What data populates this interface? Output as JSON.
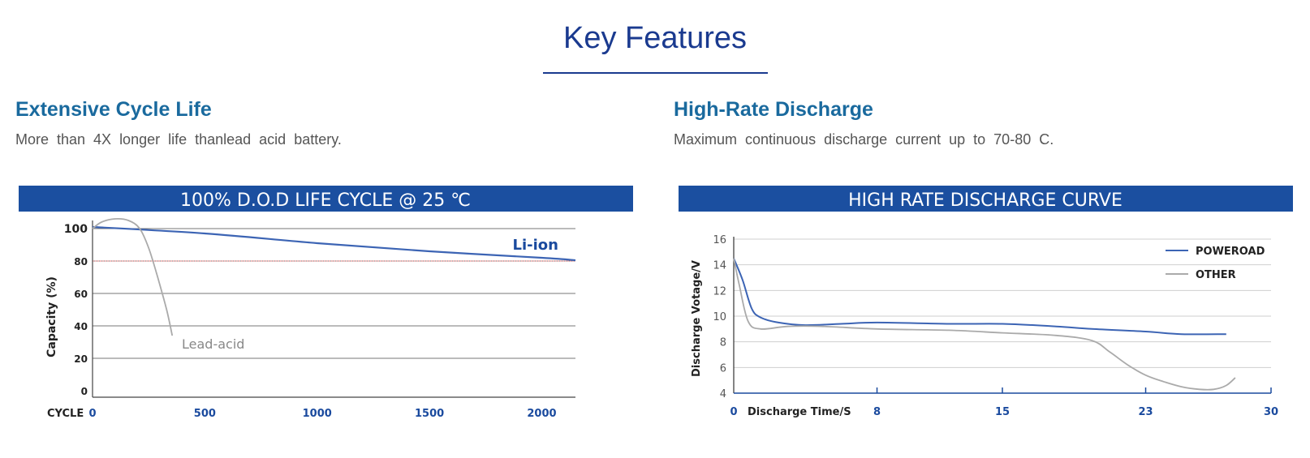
{
  "page": {
    "title": "Key Features"
  },
  "features": [
    {
      "heading": "Extensive Cycle Life",
      "description": "More than 4X longer life thanlead acid battery."
    },
    {
      "heading": "High-Rate Discharge",
      "description": "Maximum continuous discharge current up to 70-80 C."
    }
  ],
  "colors": {
    "title": "#1a3a8f",
    "heading": "#1a6a9e",
    "banner": "#1b4fa0",
    "primary_line": "#3c64b4",
    "secondary_line": "#aaaaaa",
    "reference_line": "#e88080"
  },
  "chart_data": [
    {
      "type": "line",
      "title": "100% D.O.D LIFE CYCLE @ 25 ℃",
      "xlabel": "CYCLE",
      "ylabel": "Capacity (%)",
      "xlim": [
        0,
        2150
      ],
      "ylim": [
        0,
        105
      ],
      "x_ticks": [
        0,
        500,
        1000,
        1500,
        2000
      ],
      "y_ticks": [
        0,
        20,
        40,
        60,
        80,
        100
      ],
      "reference_line": 80,
      "grid": "horizontal",
      "series": [
        {
          "name": "Li-ion",
          "points": [
            [
              0,
              101
            ],
            [
              500,
              97
            ],
            [
              1000,
              91
            ],
            [
              1500,
              86
            ],
            [
              2000,
              82
            ],
            [
              2150,
              80.5
            ]
          ]
        },
        {
          "name": "Lead-acid",
          "points": [
            [
              0,
              100
            ],
            [
              40,
              104
            ],
            [
              100,
              106
            ],
            [
              160,
              105
            ],
            [
              210,
              100
            ],
            [
              250,
              88
            ],
            [
              290,
              70
            ],
            [
              330,
              50
            ],
            [
              355,
              34
            ]
          ]
        }
      ]
    },
    {
      "type": "line",
      "title": "HIGH RATE DISCHARGE CURVE",
      "xlabel": "Discharge Time/S",
      "ylabel": "Discharge Votage/V",
      "xlim": [
        0,
        30
      ],
      "ylim": [
        4,
        16
      ],
      "x_ticks": [
        0,
        8,
        15,
        23,
        30
      ],
      "y_ticks": [
        4,
        6,
        8,
        10,
        12,
        14,
        16
      ],
      "grid": "horizontal",
      "legend": "top-right",
      "series": [
        {
          "name": "POWEROAD",
          "points": [
            [
              0,
              14.5
            ],
            [
              0.5,
              12.8
            ],
            [
              1,
              10.6
            ],
            [
              1.5,
              9.9
            ],
            [
              2.5,
              9.5
            ],
            [
              4,
              9.3
            ],
            [
              6,
              9.4
            ],
            [
              8,
              9.5
            ],
            [
              12,
              9.4
            ],
            [
              15,
              9.4
            ],
            [
              18,
              9.2
            ],
            [
              20,
              9.0
            ],
            [
              23,
              8.8
            ],
            [
              25,
              8.6
            ],
            [
              27.5,
              8.6
            ]
          ]
        },
        {
          "name": "OTHER",
          "points": [
            [
              0,
              14.5
            ],
            [
              0.3,
              12.5
            ],
            [
              0.8,
              9.6
            ],
            [
              1.5,
              9.0
            ],
            [
              3,
              9.2
            ],
            [
              5,
              9.2
            ],
            [
              8,
              9.0
            ],
            [
              12,
              8.9
            ],
            [
              15,
              8.7
            ],
            [
              18,
              8.5
            ],
            [
              20,
              8.1
            ],
            [
              21,
              7.2
            ],
            [
              22,
              6.2
            ],
            [
              23,
              5.4
            ],
            [
              24,
              4.9
            ],
            [
              25,
              4.5
            ],
            [
              26,
              4.3
            ],
            [
              26.8,
              4.3
            ],
            [
              27.5,
              4.6
            ],
            [
              28,
              5.2
            ]
          ]
        }
      ]
    }
  ]
}
